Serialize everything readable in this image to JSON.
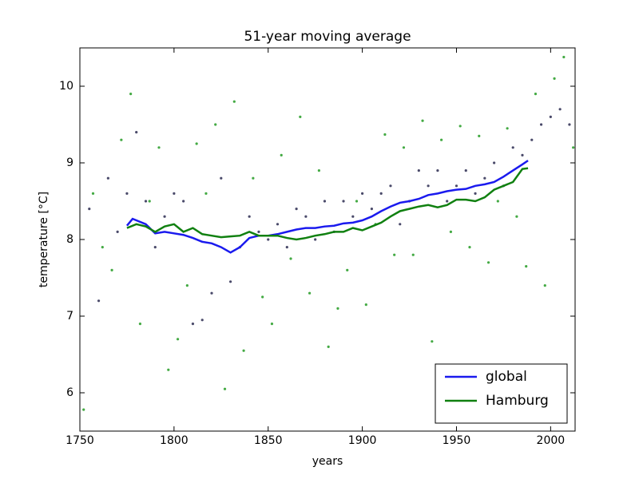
{
  "chart_data": {
    "type": "line",
    "title": "51-year moving average",
    "x_label": "years",
    "y_label": "temperature [°C]",
    "xlim": [
      1750,
      2013
    ],
    "ylim": [
      5.5,
      10.5
    ],
    "xticks": [
      1750,
      1800,
      1850,
      1900,
      1950,
      2000
    ],
    "yticks": [
      6,
      7,
      8,
      9,
      10
    ],
    "legend": "lower right",
    "series": [
      {
        "name": "global",
        "type": "line",
        "color": "#1a1aee",
        "x": [
          1775,
          1778,
          1780,
          1785,
          1790,
          1795,
          1800,
          1805,
          1810,
          1815,
          1820,
          1825,
          1830,
          1835,
          1840,
          1845,
          1850,
          1855,
          1860,
          1865,
          1870,
          1875,
          1880,
          1885,
          1890,
          1895,
          1900,
          1905,
          1910,
          1915,
          1920,
          1925,
          1930,
          1935,
          1940,
          1945,
          1950,
          1955,
          1960,
          1965,
          1970,
          1975,
          1980,
          1985,
          1988
        ],
        "values": [
          8.18,
          8.27,
          8.25,
          8.2,
          8.08,
          8.1,
          8.08,
          8.06,
          8.02,
          7.97,
          7.95,
          7.9,
          7.83,
          7.9,
          8.02,
          8.05,
          8.05,
          8.07,
          8.1,
          8.13,
          8.15,
          8.15,
          8.17,
          8.18,
          8.21,
          8.22,
          8.25,
          8.3,
          8.37,
          8.43,
          8.48,
          8.5,
          8.53,
          8.58,
          8.6,
          8.63,
          8.65,
          8.66,
          8.7,
          8.72,
          8.75,
          8.82,
          8.9,
          8.98,
          9.03
        ]
      },
      {
        "name": "Hamburg",
        "type": "line",
        "color": "#108010",
        "x": [
          1775,
          1780,
          1785,
          1790,
          1795,
          1800,
          1805,
          1810,
          1815,
          1820,
          1825,
          1830,
          1835,
          1840,
          1845,
          1850,
          1855,
          1860,
          1865,
          1870,
          1875,
          1880,
          1885,
          1890,
          1895,
          1900,
          1905,
          1910,
          1915,
          1920,
          1925,
          1930,
          1935,
          1940,
          1945,
          1950,
          1955,
          1960,
          1965,
          1970,
          1975,
          1980,
          1985,
          1988
        ],
        "values": [
          8.15,
          8.2,
          8.17,
          8.1,
          8.17,
          8.2,
          8.1,
          8.15,
          8.07,
          8.05,
          8.03,
          8.04,
          8.05,
          8.1,
          8.05,
          8.05,
          8.05,
          8.02,
          8.0,
          8.02,
          8.05,
          8.07,
          8.1,
          8.1,
          8.15,
          8.12,
          8.17,
          8.22,
          8.3,
          8.37,
          8.4,
          8.43,
          8.45,
          8.42,
          8.45,
          8.52,
          8.52,
          8.5,
          8.55,
          8.65,
          8.7,
          8.75,
          8.92,
          8.93
        ]
      },
      {
        "type": "scatter",
        "color": "#4a4a6a",
        "x": [
          1755,
          1760,
          1765,
          1770,
          1775,
          1780,
          1785,
          1790,
          1795,
          1800,
          1805,
          1810,
          1815,
          1820,
          1825,
          1830,
          1835,
          1840,
          1845,
          1850,
          1855,
          1860,
          1865,
          1870,
          1875,
          1880,
          1885,
          1890,
          1895,
          1900,
          1905,
          1910,
          1915,
          1920,
          1925,
          1930,
          1935,
          1940,
          1945,
          1950,
          1955,
          1960,
          1965,
          1970,
          1975,
          1980,
          1985,
          1990,
          1995,
          2000,
          2005,
          2010
        ],
        "values": [
          8.4,
          7.2,
          8.8,
          8.1,
          8.6,
          9.4,
          8.5,
          7.9,
          8.3,
          8.6,
          8.5,
          6.9,
          6.95,
          7.3,
          8.8,
          7.45,
          7.9,
          8.3,
          8.1,
          8.0,
          8.2,
          7.9,
          8.4,
          8.3,
          8.0,
          8.5,
          8.1,
          8.5,
          8.3,
          8.6,
          8.4,
          8.6,
          8.7,
          8.2,
          8.5,
          8.9,
          8.7,
          8.9,
          8.5,
          8.7,
          8.9,
          8.6,
          8.8,
          9.0,
          8.7,
          9.2,
          9.1,
          9.3,
          9.5,
          9.6,
          9.7,
          9.5
        ]
      },
      {
        "type": "scatter",
        "color": "#44aa44",
        "x": [
          1752,
          1757,
          1762,
          1767,
          1772,
          1777,
          1782,
          1787,
          1792,
          1797,
          1802,
          1807,
          1812,
          1817,
          1822,
          1827,
          1832,
          1837,
          1842,
          1847,
          1852,
          1857,
          1862,
          1867,
          1872,
          1877,
          1882,
          1887,
          1892,
          1897,
          1902,
          1907,
          1912,
          1917,
          1922,
          1927,
          1932,
          1937,
          1942,
          1947,
          1952,
          1957,
          1962,
          1967,
          1972,
          1977,
          1982,
          1987,
          1992,
          1997,
          2002,
          2007,
          2012
        ],
        "values": [
          5.78,
          8.6,
          7.9,
          7.6,
          9.3,
          9.9,
          6.9,
          8.5,
          9.2,
          6.3,
          6.7,
          7.4,
          9.25,
          8.6,
          9.5,
          6.05,
          9.8,
          6.55,
          8.8,
          7.25,
          6.9,
          9.1,
          7.75,
          9.6,
          7.3,
          8.9,
          6.6,
          7.1,
          7.6,
          8.5,
          7.15,
          8.2,
          9.37,
          7.8,
          9.2,
          7.8,
          9.55,
          6.67,
          9.3,
          8.1,
          9.48,
          7.9,
          9.35,
          7.7,
          8.5,
          9.45,
          8.3,
          7.65,
          9.9,
          7.4,
          10.1,
          10.38,
          9.2
        ]
      }
    ]
  }
}
